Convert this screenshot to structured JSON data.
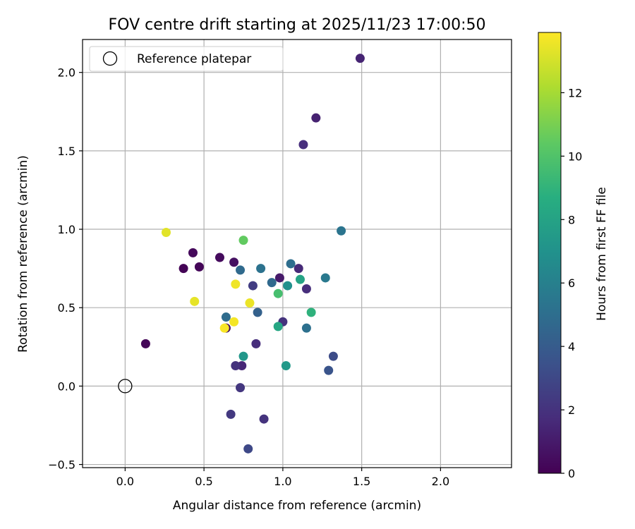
{
  "chart_data": {
    "type": "scatter",
    "title": "FOV centre drift starting at 2025/11/23 17:00:50",
    "xlabel": "Angular distance from reference (arcmin)",
    "ylabel": "Rotation from reference (arcmin)",
    "xlim": [
      -0.27,
      2.45
    ],
    "ylim": [
      -0.52,
      2.21
    ],
    "xticks": [
      0.0,
      0.5,
      1.0,
      1.5,
      2.0
    ],
    "xtick_labels": [
      "0.0",
      "0.5",
      "1.0",
      "1.5",
      "2.0"
    ],
    "yticks": [
      -0.5,
      0.0,
      0.5,
      1.0,
      1.5,
      2.0
    ],
    "ytick_labels": [
      "−0.5",
      "0.0",
      "0.5",
      "1.0",
      "1.5",
      "2.0"
    ],
    "grid": true,
    "legend": {
      "location": "top-left",
      "entries": [
        "Reference platepar"
      ]
    },
    "reference_point": {
      "x": 0.0,
      "y": 0.0,
      "label": "Reference platepar"
    },
    "colorbar": {
      "label": "Hours from first FF file",
      "colormap": "viridis",
      "range": [
        0,
        13.9
      ],
      "ticks": [
        0,
        2,
        4,
        6,
        8,
        10,
        12
      ],
      "tick_labels": [
        "0",
        "2",
        "4",
        "6",
        "8",
        "10",
        "12"
      ]
    },
    "points": [
      {
        "x": 0.13,
        "y": 0.27,
        "hours": 0.2
      },
      {
        "x": 0.37,
        "y": 0.75,
        "hours": 0.1
      },
      {
        "x": 0.43,
        "y": 0.85,
        "hours": 0.3
      },
      {
        "x": 0.47,
        "y": 0.76,
        "hours": 0.2
      },
      {
        "x": 0.6,
        "y": 0.82,
        "hours": 0.4
      },
      {
        "x": 0.69,
        "y": 0.79,
        "hours": 0.6
      },
      {
        "x": 0.64,
        "y": 0.37,
        "hours": 0.5
      },
      {
        "x": 0.98,
        "y": 0.69,
        "hours": 1.0
      },
      {
        "x": 1.1,
        "y": 0.75,
        "hours": 1.6
      },
      {
        "x": 1.15,
        "y": 0.62,
        "hours": 1.8
      },
      {
        "x": 1.0,
        "y": 0.41,
        "hours": 2.0
      },
      {
        "x": 0.83,
        "y": 0.27,
        "hours": 1.8
      },
      {
        "x": 0.74,
        "y": 0.13,
        "hours": 1.5
      },
      {
        "x": 0.7,
        "y": 0.13,
        "hours": 2.0
      },
      {
        "x": 0.73,
        "y": -0.01,
        "hours": 2.2
      },
      {
        "x": 0.67,
        "y": -0.18,
        "hours": 2.3
      },
      {
        "x": 0.88,
        "y": -0.21,
        "hours": 2.0
      },
      {
        "x": 0.78,
        "y": -0.4,
        "hours": 3.0
      },
      {
        "x": 1.21,
        "y": 1.71,
        "hours": 1.3
      },
      {
        "x": 1.13,
        "y": 1.54,
        "hours": 1.8
      },
      {
        "x": 1.49,
        "y": 2.09,
        "hours": 1.4
      },
      {
        "x": 0.81,
        "y": 0.64,
        "hours": 2.5
      },
      {
        "x": 1.32,
        "y": 0.19,
        "hours": 3.2
      },
      {
        "x": 1.29,
        "y": 0.1,
        "hours": 3.6
      },
      {
        "x": 0.84,
        "y": 0.47,
        "hours": 4.3
      },
      {
        "x": 0.93,
        "y": 0.66,
        "hours": 4.7
      },
      {
        "x": 0.73,
        "y": 0.74,
        "hours": 4.8
      },
      {
        "x": 0.86,
        "y": 0.75,
        "hours": 5.2
      },
      {
        "x": 1.05,
        "y": 0.78,
        "hours": 5.0
      },
      {
        "x": 0.64,
        "y": 0.44,
        "hours": 4.9
      },
      {
        "x": 1.15,
        "y": 0.37,
        "hours": 5.1
      },
      {
        "x": 1.37,
        "y": 0.99,
        "hours": 5.3
      },
      {
        "x": 1.27,
        "y": 0.69,
        "hours": 5.6
      },
      {
        "x": 1.03,
        "y": 0.64,
        "hours": 6.9
      },
      {
        "x": 0.75,
        "y": 0.19,
        "hours": 7.3
      },
      {
        "x": 1.02,
        "y": 0.13,
        "hours": 7.4
      },
      {
        "x": 0.97,
        "y": 0.38,
        "hours": 8.2
      },
      {
        "x": 1.11,
        "y": 0.68,
        "hours": 8.0
      },
      {
        "x": 1.18,
        "y": 0.47,
        "hours": 8.9
      },
      {
        "x": 0.97,
        "y": 0.59,
        "hours": 9.7
      },
      {
        "x": 0.75,
        "y": 0.93,
        "hours": 10.5
      },
      {
        "x": 0.26,
        "y": 0.98,
        "hours": 13.3
      },
      {
        "x": 0.44,
        "y": 0.54,
        "hours": 13.4
      },
      {
        "x": 0.7,
        "y": 0.65,
        "hours": 13.6
      },
      {
        "x": 0.79,
        "y": 0.53,
        "hours": 13.5
      },
      {
        "x": 0.69,
        "y": 0.41,
        "hours": 13.7
      },
      {
        "x": 0.63,
        "y": 0.37,
        "hours": 13.8
      }
    ]
  }
}
